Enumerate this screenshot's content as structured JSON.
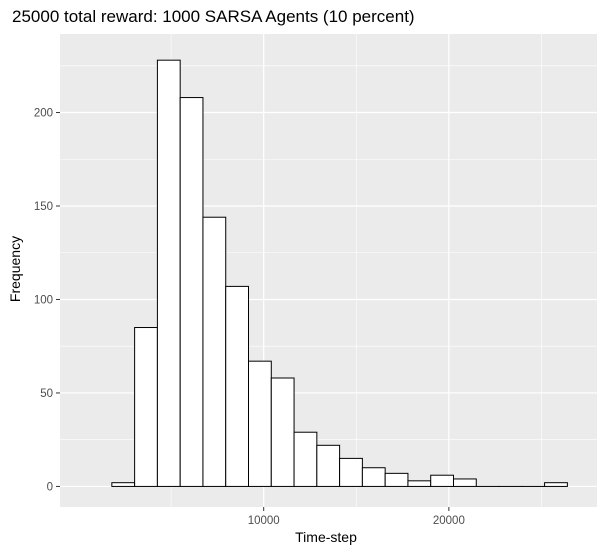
{
  "chart_data": {
    "type": "bar",
    "title": "25000 total reward: 1000 SARSA Agents (10 percent)",
    "xlabel": "Time-step",
    "ylabel": "Frequency",
    "bin_edges": [
      1800,
      3030,
      4260,
      5490,
      6720,
      7950,
      9180,
      10410,
      11640,
      12870,
      14100,
      15330,
      16560,
      17790,
      19020,
      20250,
      21480,
      22710,
      23940,
      25170,
      26400
    ],
    "values": [
      2,
      85,
      228,
      208,
      144,
      107,
      67,
      58,
      29,
      22,
      15,
      10,
      7,
      3,
      6,
      4,
      0,
      0,
      0,
      2
    ],
    "xlim": [
      -1000,
      28000
    ],
    "ylim": [
      -11,
      242
    ],
    "x_ticks": [
      10000,
      20000
    ],
    "x_tick_labels": [
      "10000",
      "20000"
    ],
    "y_ticks": [
      0,
      50,
      100,
      150,
      200
    ],
    "y_tick_labels": [
      "0",
      "50",
      "100",
      "150",
      "200"
    ],
    "grid": true,
    "legend": "none",
    "colors": {
      "panel_background": "#ebebeb",
      "grid": "#ffffff",
      "bar_fill": "#ffffff",
      "bar_outline": "#000000",
      "tick_text": "#4d4d4d"
    }
  }
}
